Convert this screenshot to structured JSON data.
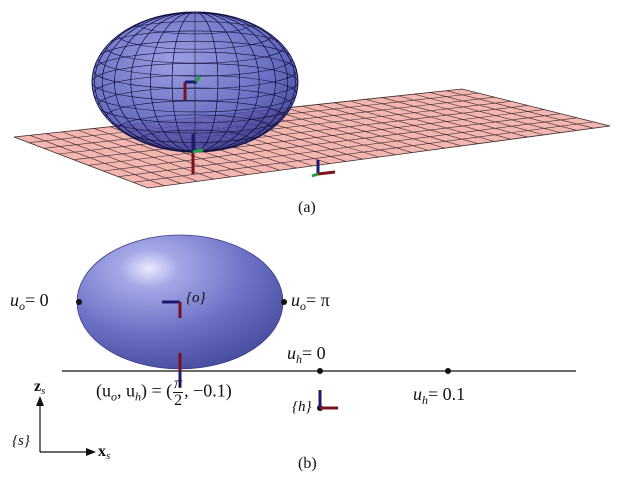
{
  "figure": {
    "panel_a_caption": "(a)",
    "panel_b_caption": "(b)"
  },
  "panel_b": {
    "label_uo_left": {
      "var": "u",
      "sub": "o",
      "rel": "= 0"
    },
    "label_uo_right": {
      "var": "u",
      "sub": "o",
      "rel": "= π"
    },
    "label_uh_zero": {
      "var": "u",
      "sub": "h",
      "rel": "= 0"
    },
    "label_uh_01": {
      "var": "u",
      "sub": "h",
      "rel": "= 0.1"
    },
    "frame_o": "{o}",
    "frame_h": "{h}",
    "frame_s": "{s}",
    "contact": {
      "lhs": "(u",
      "sub1": "o",
      "mid": ", u",
      "sub2": "h",
      "eq": ") = (",
      "num": "π",
      "den": "2",
      "tail": ", −0.1)"
    },
    "axis_z": {
      "name": "z",
      "sub": "s"
    },
    "axis_x": {
      "name": "x",
      "sub": "s"
    }
  },
  "colors": {
    "ellipsoid": "#6a6fc4",
    "plane": "#f4b6b1",
    "frame_red": "#7a1020",
    "frame_blue": "#1a1a6e",
    "frame_green": "#20a040"
  }
}
